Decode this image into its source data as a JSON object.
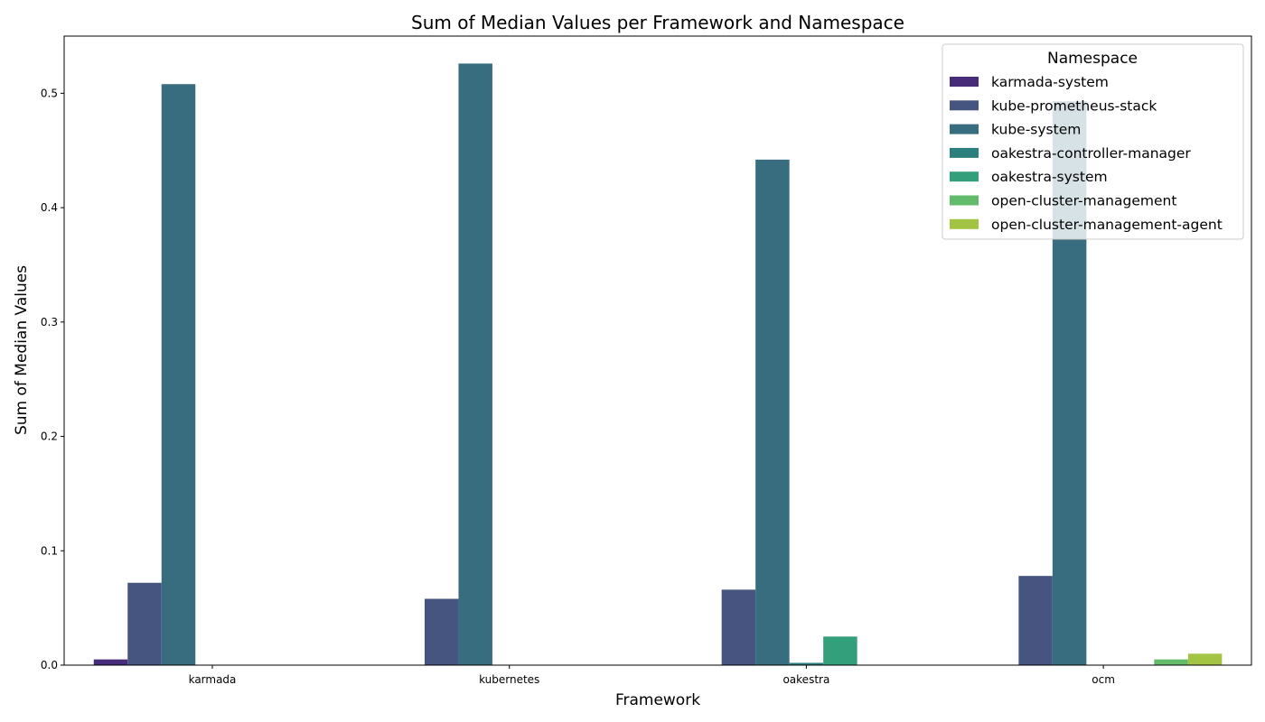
{
  "chart_data": {
    "type": "bar",
    "title": "Sum of Median Values per Framework and Namespace",
    "xlabel": "Framework",
    "ylabel": "Sum of Median Values",
    "categories": [
      "karmada",
      "kubernetes",
      "oakestra",
      "ocm"
    ],
    "ylim": [
      0,
      0.55
    ],
    "yticks": [
      0.0,
      0.1,
      0.2,
      0.3,
      0.4,
      0.5
    ],
    "grid": false,
    "legend": {
      "title": "Namespace",
      "position": "top-right"
    },
    "series": [
      {
        "name": "karmada-system",
        "color": "#472c7a",
        "values": [
          0.005,
          null,
          null,
          null
        ]
      },
      {
        "name": "kube-prometheus-stack",
        "color": "#46557f",
        "values": [
          0.072,
          0.058,
          0.066,
          0.078
        ]
      },
      {
        "name": "kube-system",
        "color": "#386d80",
        "values": [
          0.508,
          0.526,
          0.442,
          0.493
        ]
      },
      {
        "name": "oakestra-controller-manager",
        "color": "#2b7f7d",
        "values": [
          null,
          null,
          0.002,
          null
        ]
      },
      {
        "name": "oakestra-system",
        "color": "#33a07b",
        "values": [
          null,
          null,
          0.025,
          null
        ]
      },
      {
        "name": "open-cluster-management",
        "color": "#62bb6b",
        "values": [
          null,
          null,
          null,
          0.005
        ]
      },
      {
        "name": "open-cluster-management-agent",
        "color": "#a3c442",
        "values": [
          null,
          null,
          null,
          0.01
        ]
      }
    ]
  }
}
